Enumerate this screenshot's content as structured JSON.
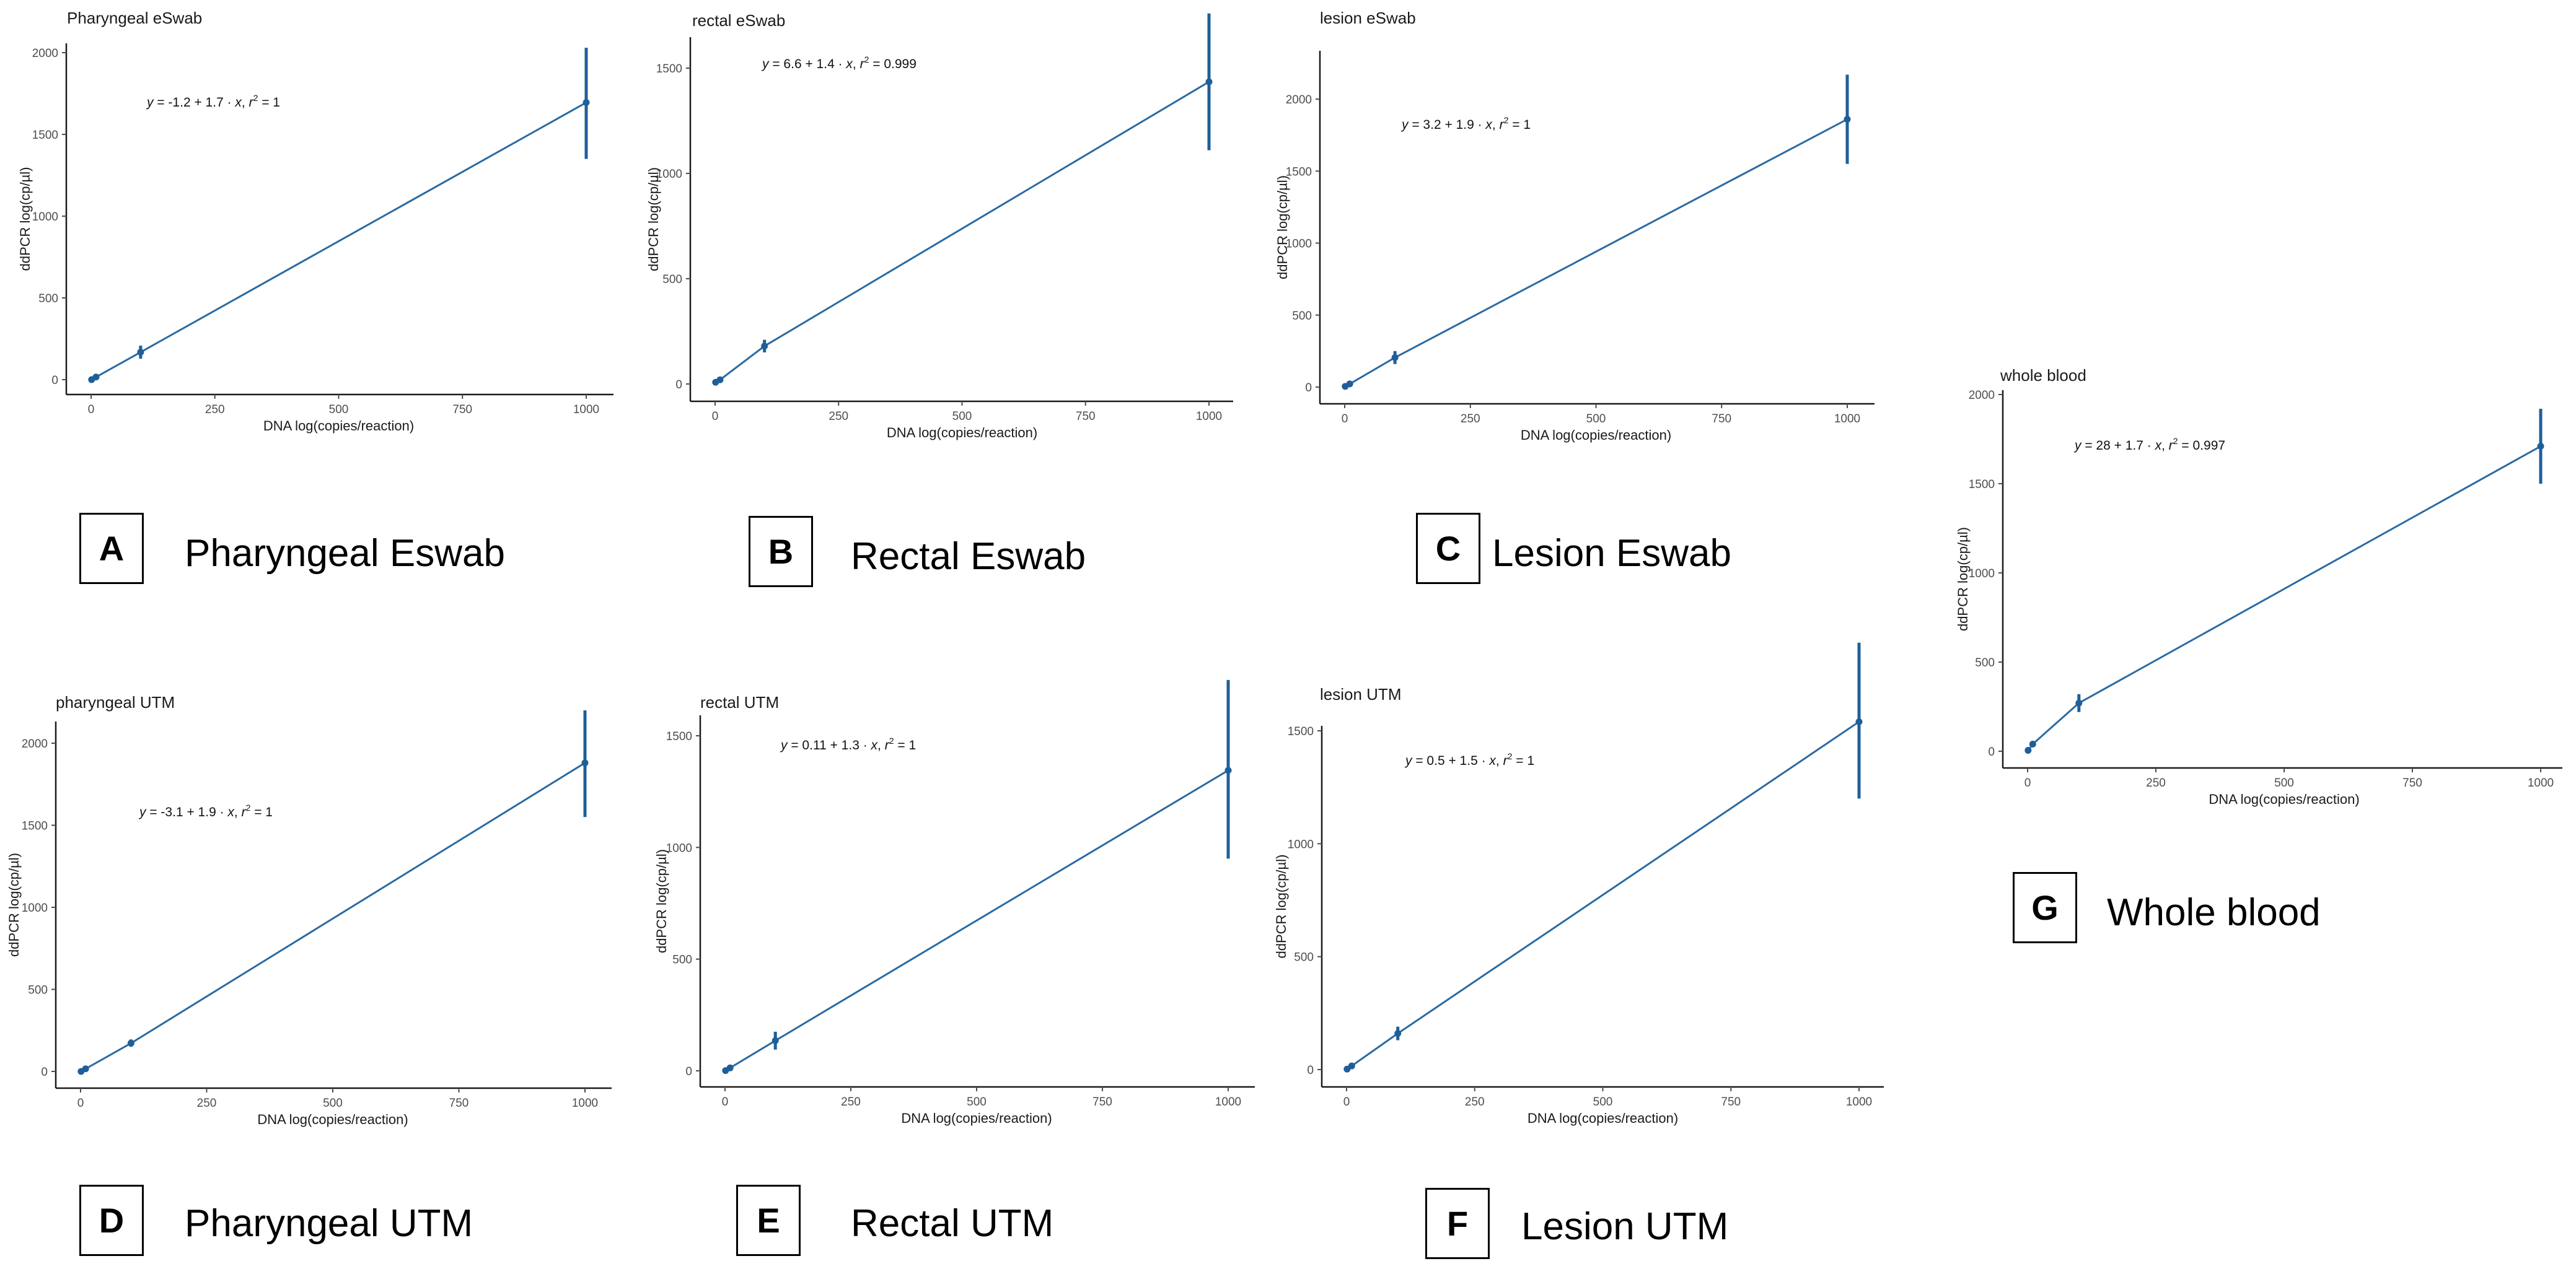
{
  "chart_data": [
    {
      "id": "A",
      "type": "scatter",
      "title": "Pharyngeal eSwab",
      "label": "Pharyngeal Eswab",
      "xlabel": "DNA log(copies/reaction)",
      "ylabel": "ddPCR log(cp/µl)",
      "xlim": [
        0,
        1000
      ],
      "ylim": [
        0,
        2000
      ],
      "xticks": [
        0,
        250,
        500,
        750,
        1000
      ],
      "yticks": [
        0,
        500,
        1000,
        1500,
        2000
      ],
      "points": [
        {
          "x": 1,
          "y": 0,
          "lo": 0,
          "hi": 0
        },
        {
          "x": 10,
          "y": 16,
          "lo": 13,
          "hi": 19
        },
        {
          "x": 100,
          "y": 168,
          "lo": 128,
          "hi": 208
        },
        {
          "x": 1000,
          "y": 1695,
          "lo": 1350,
          "hi": 2030
        }
      ],
      "equation": {
        "a": "-1.2",
        "b": "1.7",
        "r2": "1"
      }
    },
    {
      "id": "B",
      "type": "scatter",
      "title": "rectal eSwab",
      "label": "Rectal Eswab",
      "xlabel": "DNA log(copies/reaction)",
      "ylabel": "ddPCR log(cp/µl)",
      "xlim": [
        0,
        1000
      ],
      "ylim": [
        0,
        1750
      ],
      "xticks": [
        0,
        250,
        500,
        750,
        1000
      ],
      "yticks": [
        0,
        500,
        1000,
        1500
      ],
      "points": [
        {
          "x": 1,
          "y": 8,
          "lo": 8,
          "hi": 8
        },
        {
          "x": 10,
          "y": 20,
          "lo": 16,
          "hi": 24
        },
        {
          "x": 100,
          "y": 180,
          "lo": 150,
          "hi": 210
        },
        {
          "x": 1000,
          "y": 1435,
          "lo": 1110,
          "hi": 1760
        }
      ],
      "equation": {
        "a": "6.6",
        "b": "1.4",
        "r2": "0.999"
      }
    },
    {
      "id": "C",
      "type": "scatter",
      "title": "lesion eSwab",
      "label": "Lesion Eswab",
      "xlabel": "DNA log(copies/reaction)",
      "ylabel": "ddPCR log(cp/µl)",
      "xlim": [
        0,
        1000
      ],
      "ylim": [
        0,
        2150
      ],
      "xticks": [
        0,
        250,
        500,
        750,
        1000
      ],
      "yticks": [
        0,
        500,
        1000,
        1500,
        2000
      ],
      "points": [
        {
          "x": 1,
          "y": 5,
          "lo": 5,
          "hi": 5
        },
        {
          "x": 10,
          "y": 22,
          "lo": 18,
          "hi": 26
        },
        {
          "x": 100,
          "y": 205,
          "lo": 160,
          "hi": 250
        },
        {
          "x": 1000,
          "y": 1860,
          "lo": 1550,
          "hi": 2170
        }
      ],
      "equation": {
        "a": "3.2",
        "b": "1.9",
        "r2": "1"
      }
    },
    {
      "id": "D",
      "type": "scatter",
      "title": "pharyngeal UTM",
      "label": "Pharyngeal UTM",
      "xlabel": "DNA log(copies/reaction)",
      "ylabel": "ddPCR log(cp/µl)",
      "xlim": [
        0,
        1000
      ],
      "ylim": [
        0,
        2200
      ],
      "xticks": [
        0,
        250,
        500,
        750,
        1000
      ],
      "yticks": [
        0,
        500,
        1000,
        1500,
        2000
      ],
      "points": [
        {
          "x": 1,
          "y": 0,
          "lo": 0,
          "hi": 0
        },
        {
          "x": 10,
          "y": 16,
          "lo": 13,
          "hi": 19
        },
        {
          "x": 100,
          "y": 172,
          "lo": 150,
          "hi": 195
        },
        {
          "x": 1000,
          "y": 1880,
          "lo": 1550,
          "hi": 2200
        }
      ],
      "equation": {
        "a": "-3.1",
        "b": "1.9",
        "r2": "1"
      }
    },
    {
      "id": "E",
      "type": "scatter",
      "title": "rectal UTM",
      "label": "Rectal UTM",
      "xlabel": "DNA log(copies/reaction)",
      "ylabel": "ddPCR log(cp/µl)",
      "xlim": [
        0,
        1000
      ],
      "ylim": [
        0,
        1750
      ],
      "xticks": [
        0,
        250,
        500,
        750,
        1000
      ],
      "yticks": [
        0,
        500,
        1000,
        1500
      ],
      "points": [
        {
          "x": 1,
          "y": 1,
          "lo": 1,
          "hi": 1
        },
        {
          "x": 10,
          "y": 13,
          "lo": 10,
          "hi": 16
        },
        {
          "x": 100,
          "y": 135,
          "lo": 95,
          "hi": 175
        },
        {
          "x": 1000,
          "y": 1345,
          "lo": 950,
          "hi": 1750
        }
      ],
      "equation": {
        "a": "0.11",
        "b": "1.3",
        "r2": "1"
      }
    },
    {
      "id": "F",
      "type": "scatter",
      "title": "lesion UTM",
      "label": "Lesion UTM",
      "xlabel": "DNA log(copies/reaction)",
      "ylabel": "ddPCR log(cp/µl)",
      "xlim": [
        0,
        1000
      ],
      "ylim": [
        0,
        1900
      ],
      "xticks": [
        0,
        250,
        500,
        750,
        1000
      ],
      "yticks": [
        0,
        500,
        1000,
        1500
      ],
      "points": [
        {
          "x": 1,
          "y": 2,
          "lo": 2,
          "hi": 2
        },
        {
          "x": 10,
          "y": 16,
          "lo": 13,
          "hi": 19
        },
        {
          "x": 100,
          "y": 160,
          "lo": 130,
          "hi": 190
        },
        {
          "x": 1000,
          "y": 1540,
          "lo": 1200,
          "hi": 1890
        }
      ],
      "equation": {
        "a": "0.5",
        "b": "1.5",
        "r2": "1"
      }
    },
    {
      "id": "G",
      "type": "scatter",
      "title": "whole blood",
      "label": "Whole blood",
      "xlabel": "DNA log(copies/reaction)",
      "ylabel": "ddPCR log(cp/µl)",
      "xlim": [
        0,
        1000
      ],
      "ylim": [
        0,
        2000
      ],
      "xticks": [
        0,
        250,
        500,
        750,
        1000
      ],
      "yticks": [
        0,
        500,
        1000,
        1500,
        2000
      ],
      "points": [
        {
          "x": 1,
          "y": 5,
          "lo": 5,
          "hi": 5
        },
        {
          "x": 10,
          "y": 40,
          "lo": 30,
          "hi": 50
        },
        {
          "x": 100,
          "y": 270,
          "lo": 220,
          "hi": 320
        },
        {
          "x": 1000,
          "y": 1710,
          "lo": 1500,
          "hi": 1920
        }
      ],
      "equation": {
        "a": "28",
        "b": "1.7",
        "r2": "0.997"
      }
    }
  ]
}
